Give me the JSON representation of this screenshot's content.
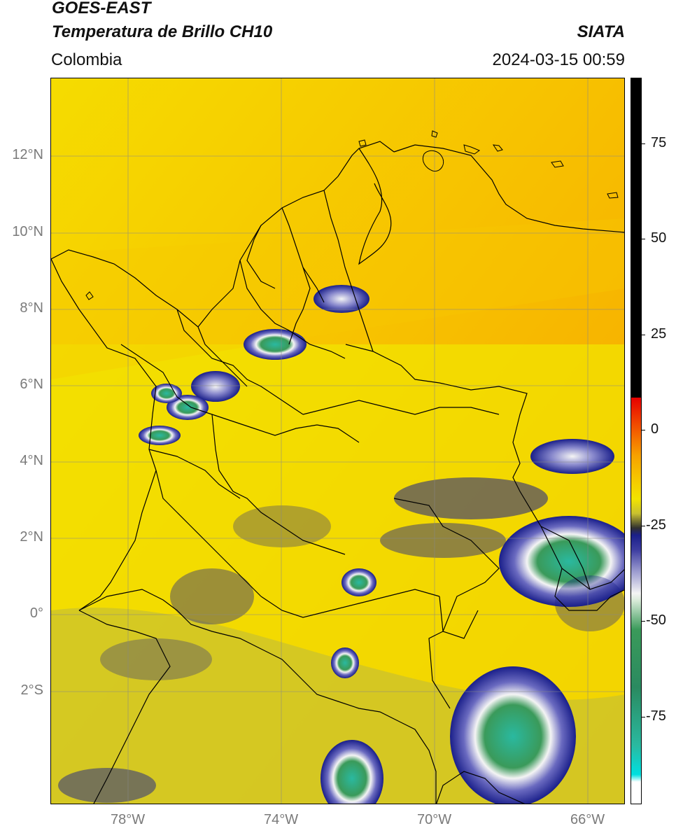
{
  "header": {
    "satellite": "GOES-EAST",
    "product": "Temperatura de Brillo CH10",
    "region": "Colombia",
    "agency": "SIATA",
    "datetime": "2024-03-15 00:59"
  },
  "map": {
    "lon_labels": [
      "78°W",
      "74°W",
      "70°W",
      "66°W"
    ],
    "lat_labels": [
      "12°N",
      "10°N",
      "8°N",
      "6°N",
      "4°N",
      "2°N",
      "0°",
      "2°S"
    ],
    "colors": {
      "warm_yellow": "#f2e400",
      "orange": "#f7a100",
      "olive": "#c8c030",
      "navy": "#1a1f8a",
      "white": "#f4f4f4",
      "green": "#3a9a5a",
      "teal": "#2ab9a0",
      "border": "#000000",
      "grid": "#888888"
    }
  },
  "colorbar": {
    "tick_labels": [
      "75",
      "50",
      "25",
      "0",
      "-25",
      "-50",
      "-75"
    ]
  }
}
